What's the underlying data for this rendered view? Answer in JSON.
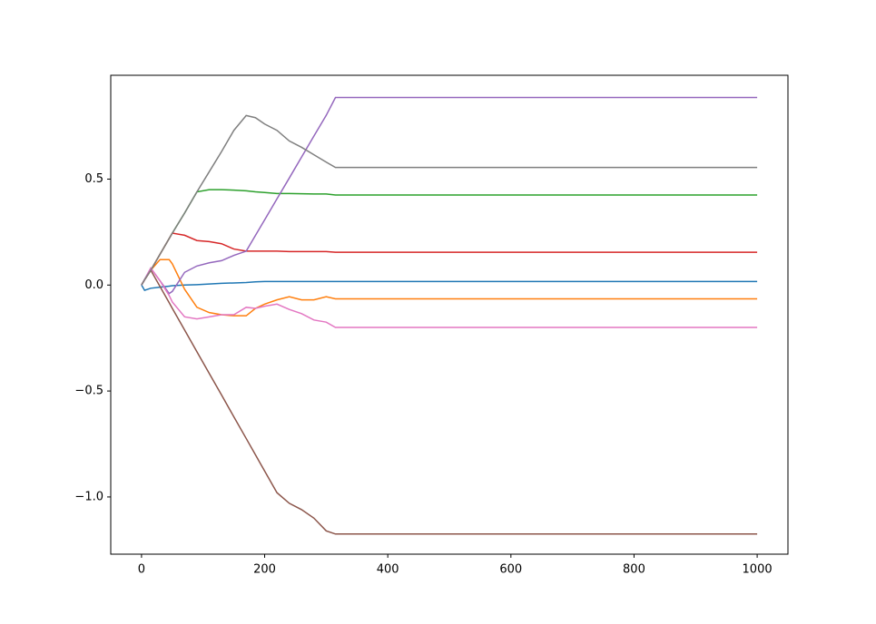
{
  "chart_data": {
    "type": "line",
    "x": [
      0,
      5,
      15,
      30,
      45,
      50,
      70,
      90,
      110,
      130,
      150,
      170,
      185,
      200,
      220,
      240,
      260,
      280,
      300,
      315,
      400,
      600,
      800,
      1000
    ],
    "series": [
      {
        "color": "#1f77b4",
        "values": [
          0,
          -0.025,
          -0.015,
          -0.01,
          -0.005,
          -0.003,
          0,
          0.002,
          0.005,
          0.008,
          0.01,
          0.012,
          0.015,
          0.017,
          0.017,
          0.017,
          0.017,
          0.017,
          0.017,
          0.017,
          0.017,
          0.017,
          0.017,
          0.017
        ]
      },
      {
        "color": "#ff7f0e",
        "values": [
          0,
          0.025,
          0.07,
          0.12,
          0.12,
          0.1,
          -0.02,
          -0.105,
          -0.13,
          -0.14,
          -0.145,
          -0.145,
          -0.11,
          -0.09,
          -0.07,
          -0.055,
          -0.07,
          -0.07,
          -0.055,
          -0.065,
          -0.065,
          -0.065,
          -0.065,
          -0.065
        ]
      },
      {
        "color": "#2ca02c",
        "values": [
          0,
          0.025,
          0.07,
          0.145,
          0.22,
          0.245,
          0.34,
          0.44,
          0.45,
          0.45,
          0.448,
          0.445,
          0.44,
          0.437,
          0.432,
          0.432,
          0.431,
          0.43,
          0.43,
          0.425,
          0.425,
          0.425,
          0.425,
          0.425
        ]
      },
      {
        "color": "#d62728",
        "values": [
          0,
          0.025,
          0.07,
          0.145,
          0.22,
          0.245,
          0.235,
          0.21,
          0.205,
          0.195,
          0.17,
          0.16,
          0.16,
          0.16,
          0.16,
          0.158,
          0.158,
          0.158,
          0.158,
          0.155,
          0.155,
          0.155,
          0.155,
          0.155
        ]
      },
      {
        "color": "#9467bd",
        "values": [
          0,
          0.027,
          0.08,
          0.02,
          -0.04,
          -0.03,
          0.06,
          0.09,
          0.105,
          0.115,
          0.14,
          0.16,
          0.234,
          0.308,
          0.407,
          0.505,
          0.604,
          0.703,
          0.801,
          0.885,
          0.885,
          0.885,
          0.885,
          0.885
        ]
      },
      {
        "color": "#8c564b",
        "values": [
          0,
          0.025,
          0.07,
          -0.007,
          -0.084,
          -0.11,
          -0.212,
          -0.315,
          -0.417,
          -0.519,
          -0.622,
          -0.724,
          -0.801,
          -0.878,
          -0.98,
          -1.03,
          -1.06,
          -1.1,
          -1.16,
          -1.175,
          -1.175,
          -1.175,
          -1.175,
          -1.175
        ]
      },
      {
        "color": "#e377c2",
        "values": [
          0,
          0.025,
          0.08,
          0.02,
          -0.05,
          -0.08,
          -0.15,
          -0.16,
          -0.15,
          -0.14,
          -0.14,
          -0.105,
          -0.11,
          -0.1,
          -0.09,
          -0.115,
          -0.135,
          -0.165,
          -0.175,
          -0.2,
          -0.2,
          -0.2,
          -0.2,
          -0.2
        ]
      },
      {
        "color": "#7f7f7f",
        "values": [
          0,
          0.025,
          0.07,
          0.145,
          0.22,
          0.245,
          0.34,
          0.44,
          0.535,
          0.63,
          0.73,
          0.8,
          0.79,
          0.76,
          0.73,
          0.68,
          0.65,
          0.615,
          0.58,
          0.555,
          0.555,
          0.555,
          0.555,
          0.555
        ]
      }
    ],
    "xlim": [
      -50,
      1050
    ],
    "ylim": [
      -1.27,
      0.99
    ],
    "xticks": [
      0,
      200,
      400,
      600,
      800,
      1000
    ],
    "yticks": [
      {
        "value": -1.0,
        "label": "−1.0"
      },
      {
        "value": -0.5,
        "label": "−0.5"
      },
      {
        "value": 0.0,
        "label": "0.0"
      },
      0.5
    ]
  }
}
